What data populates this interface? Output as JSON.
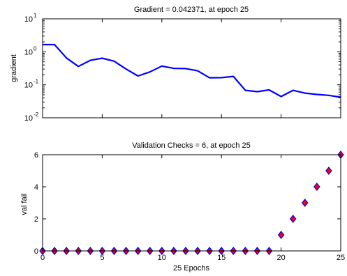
{
  "chart_data": [
    {
      "type": "line",
      "title": "Gradient = 0.042371, at epoch 25",
      "xlabel": "",
      "ylabel": "gradient",
      "yscale": "log",
      "xlim": [
        0,
        25
      ],
      "ylim_exponents": [
        -2,
        1
      ],
      "ytick_labels": [
        {
          "base": "10",
          "exp": "-2"
        },
        {
          "base": "10",
          "exp": "-1"
        },
        {
          "base": "10",
          "exp": "0"
        },
        {
          "base": "10",
          "exp": "1"
        }
      ],
      "line_color": "#0000ff",
      "series": [
        {
          "x": [
            0,
            1,
            2,
            3,
            4,
            5,
            6,
            7,
            8,
            9,
            10,
            11,
            12,
            13,
            14,
            15,
            16,
            17,
            18,
            19,
            20,
            21,
            22,
            23,
            24,
            25
          ],
          "y": [
            1.65,
            1.65,
            0.65,
            0.36,
            0.55,
            0.64,
            0.52,
            0.3,
            0.185,
            0.245,
            0.37,
            0.315,
            0.31,
            0.265,
            0.163,
            0.165,
            0.18,
            0.068,
            0.062,
            0.07,
            0.044,
            0.068,
            0.056,
            0.051,
            0.048,
            0.042
          ]
        }
      ]
    },
    {
      "type": "scatter",
      "title": "Validation Checks = 6, at epoch 25",
      "xlabel": "25 Epochs",
      "ylabel": "val fail",
      "xlim": [
        0,
        25
      ],
      "ylim": [
        0,
        6
      ],
      "xticks": [
        0,
        5,
        10,
        15,
        20,
        25
      ],
      "yticks": [
        0,
        2,
        4,
        6
      ],
      "marker": "diamond",
      "marker_fill": "#ff0000",
      "marker_edge": "#0000ff",
      "series": [
        {
          "x": [
            0,
            1,
            2,
            3,
            4,
            5,
            6,
            7,
            8,
            9,
            10,
            11,
            12,
            13,
            14,
            15,
            16,
            17,
            18,
            19,
            20,
            21,
            22,
            23,
            24,
            25
          ],
          "y": [
            0,
            0,
            0,
            0,
            0,
            0,
            0,
            0,
            0,
            0,
            0,
            0,
            0,
            0,
            0,
            0,
            0,
            0,
            0,
            0,
            1,
            2,
            3,
            4,
            5,
            6
          ]
        }
      ]
    }
  ]
}
